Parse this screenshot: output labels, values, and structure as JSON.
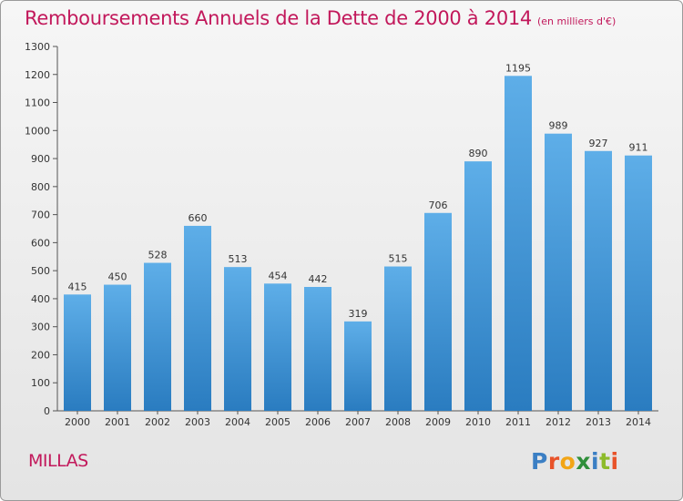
{
  "header": {
    "title": "Remboursements Annuels de la Dette de 2000 à 2014",
    "unit": "(en milliers d'€)"
  },
  "footer": {
    "commune": "MILLAS",
    "logo_letters": [
      "P",
      "r",
      "o",
      "x",
      "i",
      "t",
      "i"
    ]
  },
  "colors": {
    "bar_top": "#5eaee8",
    "bar_bottom": "#2a7cc0",
    "title": "#c2185b"
  },
  "chart_data": {
    "type": "bar",
    "title": "Remboursements Annuels de la Dette de 2000 à 2014",
    "subtitle": "(en milliers d'€)",
    "xlabel": "",
    "ylabel": "",
    "categories": [
      "2000",
      "2001",
      "2002",
      "2003",
      "2004",
      "2005",
      "2006",
      "2007",
      "2008",
      "2009",
      "2010",
      "2011",
      "2012",
      "2013",
      "2014"
    ],
    "values": [
      415,
      450,
      528,
      660,
      513,
      454,
      442,
      319,
      515,
      706,
      890,
      1195,
      989,
      927,
      911
    ],
    "ylim": [
      0,
      1300
    ],
    "yticks": [
      0,
      100,
      200,
      300,
      400,
      500,
      600,
      700,
      800,
      900,
      1000,
      1100,
      1200,
      1300
    ],
    "grid": false,
    "legend": "none"
  }
}
